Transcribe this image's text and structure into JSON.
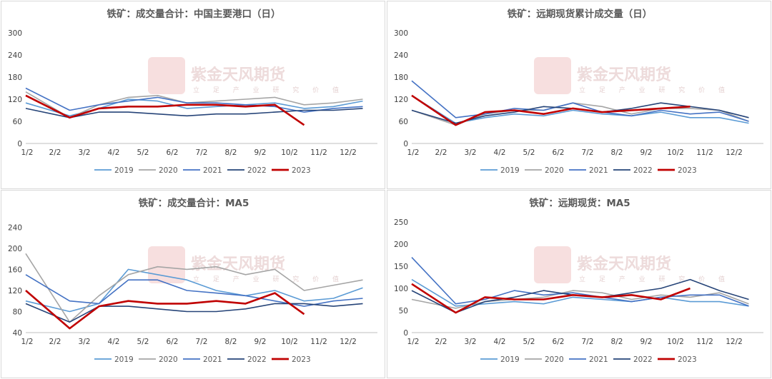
{
  "watermark": {
    "text": "紫金天风期货",
    "sub": "立 足 产 业 研 究 价 值"
  },
  "x_ticks": [
    "1/2",
    "2/2",
    "3/2",
    "4/2",
    "5/2",
    "6/2",
    "7/2",
    "8/2",
    "9/2",
    "10/2",
    "11/2",
    "12/2"
  ],
  "series_names": [
    "2019",
    "2020",
    "2021",
    "2022",
    "2023"
  ],
  "series_colors": [
    "#5b9bd5",
    "#a5a5a5",
    "#4472c4",
    "#264478",
    "#c00000"
  ],
  "chart_data": [
    {
      "type": "line",
      "title": "铁矿：成交量合计：中国主要港口（日）",
      "ylim": [
        0,
        300
      ],
      "yticks": [
        0,
        60,
        120,
        180,
        240,
        300
      ],
      "x": [
        "1/2",
        "2/2",
        "3/2",
        "4/2",
        "5/2",
        "6/2",
        "7/2",
        "8/2",
        "9/2",
        "10/2",
        "11/2",
        "12/2"
      ],
      "series": [
        {
          "name": "2019",
          "values": [
            110,
            75,
            95,
            120,
            115,
            95,
            100,
            105,
            110,
            95,
            100,
            115
          ]
        },
        {
          "name": "2020",
          "values": [
            140,
            70,
            105,
            125,
            130,
            110,
            115,
            120,
            125,
            105,
            110,
            120
          ]
        },
        {
          "name": "2021",
          "values": [
            150,
            90,
            105,
            115,
            125,
            110,
            110,
            105,
            100,
            85,
            95,
            100
          ]
        },
        {
          "name": "2022",
          "values": [
            95,
            70,
            85,
            85,
            80,
            75,
            80,
            80,
            85,
            90,
            90,
            95
          ]
        },
        {
          "name": "2023",
          "values": [
            130,
            70,
            95,
            100,
            100,
            105,
            105,
            100,
            105,
            50,
            null,
            null
          ]
        }
      ]
    },
    {
      "type": "line",
      "title": "铁矿：远期现货累计成交量（日）",
      "ylim": [
        0,
        300
      ],
      "yticks": [
        0,
        60,
        120,
        180,
        240,
        300
      ],
      "x": [
        "1/2",
        "2/2",
        "3/2",
        "4/2",
        "5/2",
        "6/2",
        "7/2",
        "8/2",
        "9/2",
        "10/2",
        "11/2",
        "12/2"
      ],
      "series": [
        {
          "name": "2019",
          "values": [
            130,
            55,
            70,
            80,
            75,
            90,
            80,
            75,
            85,
            70,
            70,
            55
          ]
        },
        {
          "name": "2020",
          "values": [
            90,
            50,
            80,
            90,
            90,
            110,
            100,
            80,
            95,
            95,
            90,
            60
          ]
        },
        {
          "name": "2021",
          "values": [
            170,
            70,
            80,
            95,
            90,
            110,
            85,
            75,
            90,
            80,
            85,
            60
          ]
        },
        {
          "name": "2022",
          "values": [
            90,
            55,
            75,
            85,
            100,
            95,
            85,
            95,
            110,
            100,
            90,
            70
          ]
        },
        {
          "name": "2023",
          "values": [
            130,
            50,
            85,
            90,
            80,
            95,
            85,
            90,
            95,
            100,
            null,
            null
          ]
        }
      ]
    },
    {
      "type": "line",
      "title": "铁矿：成交量合计：MA5",
      "ylim": [
        40,
        250
      ],
      "yticks": [
        40,
        80,
        120,
        160,
        200,
        240
      ],
      "x": [
        "1/2",
        "2/2",
        "3/2",
        "4/2",
        "5/2",
        "6/2",
        "7/2",
        "8/2",
        "9/2",
        "10/2",
        "11/2",
        "12/2"
      ],
      "series": [
        {
          "name": "2019",
          "values": [
            100,
            80,
            95,
            160,
            150,
            140,
            120,
            110,
            120,
            100,
            105,
            125
          ]
        },
        {
          "name": "2020",
          "values": [
            190,
            60,
            110,
            150,
            165,
            160,
            165,
            150,
            160,
            120,
            130,
            140
          ]
        },
        {
          "name": "2021",
          "values": [
            150,
            100,
            95,
            140,
            140,
            120,
            115,
            110,
            100,
            90,
            100,
            105
          ]
        },
        {
          "name": "2022",
          "values": [
            95,
            60,
            90,
            90,
            85,
            80,
            80,
            85,
            95,
            95,
            90,
            95
          ]
        },
        {
          "name": "2023",
          "values": [
            120,
            48,
            90,
            100,
            95,
            95,
            100,
            95,
            115,
            75,
            null,
            null
          ]
        }
      ]
    },
    {
      "type": "line",
      "title": "铁矿：远期现货：MA5",
      "ylim": [
        0,
        250
      ],
      "yticks": [
        0,
        50,
        100,
        150,
        200,
        250
      ],
      "x": [
        "1/2",
        "2/2",
        "3/2",
        "4/2",
        "5/2",
        "6/2",
        "7/2",
        "8/2",
        "9/2",
        "10/2",
        "11/2",
        "12/2"
      ],
      "series": [
        {
          "name": "2019",
          "values": [
            120,
            60,
            65,
            70,
            65,
            80,
            75,
            70,
            80,
            70,
            70,
            60
          ]
        },
        {
          "name": "2020",
          "values": [
            75,
            55,
            70,
            75,
            80,
            95,
            90,
            75,
            85,
            80,
            90,
            65
          ]
        },
        {
          "name": "2021",
          "values": [
            170,
            65,
            75,
            95,
            85,
            90,
            80,
            70,
            80,
            85,
            85,
            60
          ]
        },
        {
          "name": "2022",
          "values": [
            95,
            45,
            70,
            80,
            95,
            85,
            80,
            90,
            100,
            120,
            95,
            75
          ]
        },
        {
          "name": "2023",
          "values": [
            110,
            45,
            80,
            75,
            75,
            85,
            80,
            85,
            75,
            100,
            null,
            null
          ]
        }
      ]
    }
  ]
}
